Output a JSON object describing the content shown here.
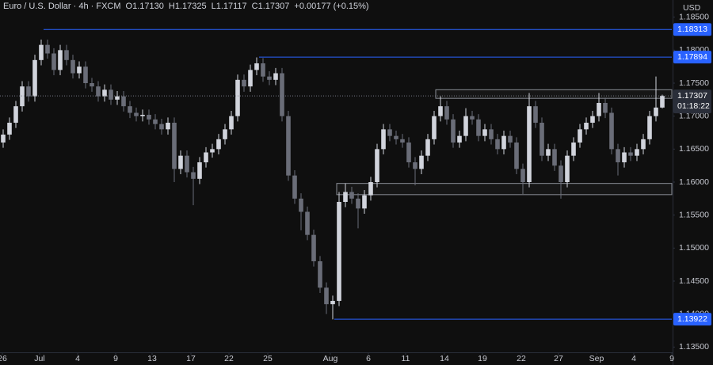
{
  "chart_data": {
    "type": "candlestick",
    "title": "Euro / U.S. Dollar · 4h · FXCM",
    "ohlc": [
      "O1.17130",
      "H1.17325",
      "L1.17117",
      "C1.17307"
    ],
    "change": "+0.00177 (+0.15%)",
    "currency": "USD",
    "countdown": "01:18:22",
    "last_price": {
      "value": 1.17307,
      "label": "1.17307"
    },
    "up_color": "#d1d4dc",
    "down_color": "#6a6d78",
    "level_color": "#2962ff",
    "zone_color": "#8a8d96",
    "grid": false,
    "ylim": [
      1.1342,
      1.1876
    ],
    "yticks": [
      {
        "value": 1.185,
        "label": "1.18500"
      },
      {
        "value": 1.18,
        "label": "1.18000"
      },
      {
        "value": 1.175,
        "label": "1.17500"
      },
      {
        "value": 1.17,
        "label": "1.17000"
      },
      {
        "value": 1.165,
        "label": "1.16500"
      },
      {
        "value": 1.16,
        "label": "1.16000"
      },
      {
        "value": 1.155,
        "label": "1.15500"
      },
      {
        "value": 1.15,
        "label": "1.15000"
      },
      {
        "value": 1.145,
        "label": "1.14500"
      },
      {
        "value": 1.14,
        "label": "1.14000"
      },
      {
        "value": 1.135,
        "label": "1.13500"
      }
    ],
    "xlim": [
      0,
      106
    ],
    "xticks": [
      {
        "value": 0.375,
        "label": "26"
      },
      {
        "value": 6.25,
        "label": "Jul"
      },
      {
        "value": 12.25,
        "label": "4"
      },
      {
        "value": 18.25,
        "label": "9"
      },
      {
        "value": 24,
        "label": "13"
      },
      {
        "value": 30.125,
        "label": "17"
      },
      {
        "value": 36.125,
        "label": "22"
      },
      {
        "value": 42.25,
        "label": "25"
      },
      {
        "value": 52.125,
        "label": "Aug"
      },
      {
        "value": 58.125,
        "label": "6"
      },
      {
        "value": 64,
        "label": "11"
      },
      {
        "value": 70.125,
        "label": "14"
      },
      {
        "value": 76.125,
        "label": "19"
      },
      {
        "value": 82.25,
        "label": "22"
      },
      {
        "value": 88.125,
        "label": "27"
      },
      {
        "value": 94.125,
        "label": "Sep"
      },
      {
        "value": 100,
        "label": "4"
      },
      {
        "value": 106,
        "label": "9"
      }
    ],
    "levels": [
      {
        "price": 1.18313,
        "label": "1.18313",
        "from": 6.875
      },
      {
        "price": 1.17894,
        "label": "1.17894",
        "from": 40.875
      },
      {
        "price": 1.13922,
        "label": "1.13922",
        "from": 52.75
      }
    ],
    "zones": [
      {
        "low": 1.1727,
        "high": 1.174,
        "from": 68.75,
        "to": 106
      },
      {
        "low": 1.1581,
        "high": 1.1598,
        "from": 53.125,
        "to": 106
      }
    ],
    "candles": {
      "open": [
        1.166,
        1.1672,
        1.169,
        1.1715,
        1.1745,
        1.173,
        1.1785,
        1.1808,
        1.1795,
        1.177,
        1.18,
        1.1785,
        1.1765,
        1.1775,
        1.175,
        1.1745,
        1.173,
        1.174,
        1.1725,
        1.173,
        1.1715,
        1.1705,
        1.17,
        1.1702,
        1.1695,
        1.1688,
        1.168,
        1.169,
        1.162,
        1.164,
        1.1615,
        1.1605,
        1.163,
        1.1645,
        1.165,
        1.1665,
        1.168,
        1.17,
        1.1755,
        1.1745,
        1.177,
        1.178,
        1.176,
        1.1755,
        1.1765,
        1.17,
        1.161,
        1.1575,
        1.1555,
        1.152,
        1.148,
        1.144,
        1.1415,
        1.142,
        1.157,
        1.1585,
        1.1575,
        1.156,
        1.158,
        1.16,
        1.165,
        1.168,
        1.167,
        1.1665,
        1.166,
        1.163,
        1.162,
        1.164,
        1.1665,
        1.17,
        1.1715,
        1.1695,
        1.166,
        1.167,
        1.17,
        1.1695,
        1.167,
        1.168,
        1.1665,
        1.165,
        1.167,
        1.166,
        1.162,
        1.16,
        1.1715,
        1.169,
        1.164,
        1.165,
        1.1625,
        1.16,
        1.164,
        1.166,
        1.168,
        1.169,
        1.17,
        1.172,
        1.1705,
        1.165,
        1.163,
        1.1645,
        1.164,
        1.165,
        1.1665,
        1.17,
        1.1713
      ],
      "high": [
        1.168,
        1.1698,
        1.1723,
        1.1753,
        1.1753,
        1.1793,
        1.1816,
        1.1816,
        1.1803,
        1.1808,
        1.1808,
        1.1793,
        1.1783,
        1.1783,
        1.1758,
        1.1753,
        1.1748,
        1.1748,
        1.1738,
        1.1738,
        1.1723,
        1.1713,
        1.171,
        1.171,
        1.1703,
        1.1696,
        1.1698,
        1.1698,
        1.1648,
        1.1648,
        1.1623,
        1.1638,
        1.1653,
        1.1658,
        1.1673,
        1.1688,
        1.1708,
        1.1763,
        1.1763,
        1.1778,
        1.1789,
        1.1788,
        1.1768,
        1.1773,
        1.1773,
        1.1708,
        1.1618,
        1.1583,
        1.1563,
        1.1528,
        1.1488,
        1.1448,
        1.1428,
        1.1585,
        1.1598,
        1.1593,
        1.1583,
        1.1588,
        1.1608,
        1.1658,
        1.1688,
        1.1688,
        1.1678,
        1.1673,
        1.1668,
        1.1638,
        1.1648,
        1.1673,
        1.1708,
        1.173,
        1.1723,
        1.1703,
        1.1678,
        1.1712,
        1.1708,
        1.1703,
        1.1688,
        1.1688,
        1.1673,
        1.1678,
        1.1678,
        1.1668,
        1.1628,
        1.1735,
        1.1723,
        1.1698,
        1.1658,
        1.1658,
        1.1633,
        1.1648,
        1.1668,
        1.1688,
        1.1698,
        1.1708,
        1.1735,
        1.1728,
        1.1713,
        1.1658,
        1.1653,
        1.1653,
        1.1658,
        1.1673,
        1.1708,
        1.176,
        1.17325
      ],
      "low": [
        1.1652,
        1.1664,
        1.1682,
        1.1707,
        1.1722,
        1.1722,
        1.1777,
        1.1787,
        1.1762,
        1.1762,
        1.1777,
        1.1757,
        1.1757,
        1.1742,
        1.1737,
        1.1722,
        1.1722,
        1.1717,
        1.1717,
        1.1707,
        1.1697,
        1.1692,
        1.1692,
        1.1687,
        1.168,
        1.1672,
        1.1672,
        1.16,
        1.1612,
        1.1607,
        1.1565,
        1.1597,
        1.1622,
        1.1637,
        1.1642,
        1.1657,
        1.1672,
        1.1692,
        1.1737,
        1.1737,
        1.1762,
        1.1752,
        1.1747,
        1.1747,
        1.1692,
        1.1602,
        1.1567,
        1.1527,
        1.1512,
        1.1472,
        1.1432,
        1.14,
        1.1392,
        1.1412,
        1.1562,
        1.1567,
        1.153,
        1.1552,
        1.1572,
        1.1592,
        1.1642,
        1.1662,
        1.1657,
        1.1652,
        1.1622,
        1.1595,
        1.1612,
        1.1632,
        1.1657,
        1.1692,
        1.1687,
        1.1652,
        1.1652,
        1.1662,
        1.1687,
        1.1662,
        1.1662,
        1.1657,
        1.1642,
        1.1642,
        1.1652,
        1.1612,
        1.1582,
        1.1592,
        1.1682,
        1.1632,
        1.1632,
        1.1617,
        1.1575,
        1.1592,
        1.1632,
        1.1652,
        1.1672,
        1.1682,
        1.1692,
        1.1697,
        1.1642,
        1.161,
        1.1622,
        1.1632,
        1.1632,
        1.1642,
        1.1657,
        1.1692,
        1.17117
      ],
      "close": [
        1.1672,
        1.169,
        1.1715,
        1.1745,
        1.173,
        1.1785,
        1.1808,
        1.1795,
        1.177,
        1.18,
        1.1785,
        1.1765,
        1.1775,
        1.175,
        1.1745,
        1.173,
        1.174,
        1.1725,
        1.173,
        1.1715,
        1.1705,
        1.17,
        1.1702,
        1.1695,
        1.1688,
        1.168,
        1.169,
        1.162,
        1.164,
        1.1615,
        1.1605,
        1.163,
        1.1645,
        1.165,
        1.1665,
        1.168,
        1.17,
        1.1755,
        1.1745,
        1.177,
        1.178,
        1.176,
        1.1755,
        1.1765,
        1.17,
        1.161,
        1.1575,
        1.1555,
        1.152,
        1.148,
        1.144,
        1.1415,
        1.142,
        1.157,
        1.1585,
        1.1575,
        1.156,
        1.158,
        1.16,
        1.165,
        1.168,
        1.167,
        1.1665,
        1.166,
        1.163,
        1.162,
        1.164,
        1.1665,
        1.17,
        1.1715,
        1.1695,
        1.166,
        1.167,
        1.17,
        1.1695,
        1.167,
        1.168,
        1.1665,
        1.165,
        1.167,
        1.166,
        1.162,
        1.16,
        1.1715,
        1.169,
        1.164,
        1.165,
        1.1625,
        1.16,
        1.164,
        1.166,
        1.168,
        1.169,
        1.17,
        1.172,
        1.1705,
        1.165,
        1.163,
        1.1645,
        1.164,
        1.165,
        1.1665,
        1.17,
        1.1713,
        1.17307
      ]
    }
  }
}
